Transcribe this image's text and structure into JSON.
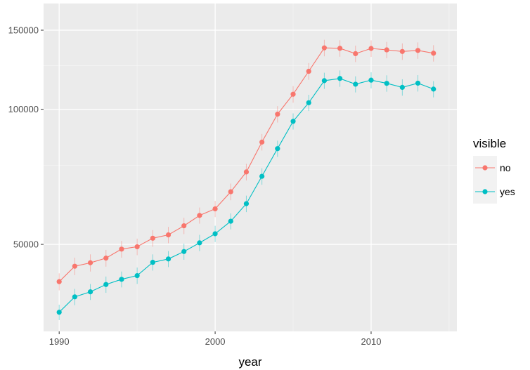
{
  "chart_data": {
    "type": "line",
    "title": "",
    "xlabel": "year",
    "ylabel": "",
    "y_scale": "log10",
    "xlim": [
      1989.0,
      2015.5
    ],
    "ylim": [
      32000,
      172000
    ],
    "x_ticks": [
      1990,
      2000,
      2010
    ],
    "x_tick_labels": [
      "1990",
      "2000",
      "2010"
    ],
    "y_ticks": [
      50000,
      100000,
      150000
    ],
    "y_tick_labels": [
      "50000",
      "100000",
      "150000"
    ],
    "grid": true,
    "legend": {
      "title": "visible",
      "position": "right"
    },
    "x": [
      1990,
      1991,
      1992,
      1993,
      1994,
      1995,
      1996,
      1997,
      1998,
      1999,
      2000,
      2001,
      2002,
      2003,
      2004,
      2005,
      2006,
      2007,
      2008,
      2009,
      2010,
      2011,
      2012,
      2013,
      2014
    ],
    "series": [
      {
        "name": "no",
        "color": "#F8766D",
        "values": [
          41300,
          44700,
          45500,
          46600,
          48800,
          49400,
          51600,
          52500,
          55000,
          58000,
          60000,
          65500,
          72500,
          84500,
          97500,
          108000,
          121500,
          137000,
          136700,
          133000,
          136600,
          135600,
          134500,
          135200,
          133300
        ],
        "lower": [
          39500,
          42700,
          43500,
          44600,
          46700,
          47300,
          49400,
          50300,
          52700,
          55600,
          57500,
          62700,
          69400,
          80900,
          93400,
          103400,
          116300,
          131200,
          130900,
          127400,
          130800,
          129900,
          128800,
          129500,
          127700
        ],
        "upper": [
          43100,
          46700,
          47500,
          48600,
          50900,
          51500,
          53800,
          54700,
          57300,
          60400,
          62500,
          68300,
          75600,
          88100,
          101600,
          112600,
          126700,
          142800,
          142500,
          138600,
          142400,
          141300,
          140200,
          140900,
          138900
        ]
      },
      {
        "name": "yes",
        "color": "#00BFC4",
        "values": [
          35300,
          38200,
          39200,
          40700,
          41800,
          42600,
          45600,
          46400,
          48200,
          50400,
          52800,
          56300,
          61600,
          70900,
          81700,
          94000,
          103400,
          115800,
          117100,
          113700,
          116100,
          114200,
          111900,
          114300,
          110900
        ],
        "lower": [
          33900,
          36600,
          37600,
          39000,
          40100,
          40800,
          43700,
          44500,
          46200,
          48300,
          50600,
          54000,
          59000,
          67900,
          78300,
          90100,
          99100,
          111000,
          112200,
          109000,
          111300,
          109400,
          107200,
          109500,
          106300
        ],
        "upper": [
          36700,
          39800,
          40800,
          42400,
          43500,
          44400,
          47500,
          48300,
          50200,
          52500,
          55000,
          58600,
          64200,
          73900,
          85100,
          97900,
          107700,
          120600,
          122000,
          118400,
          120900,
          119000,
          116600,
          119100,
          115500
        ]
      }
    ]
  }
}
